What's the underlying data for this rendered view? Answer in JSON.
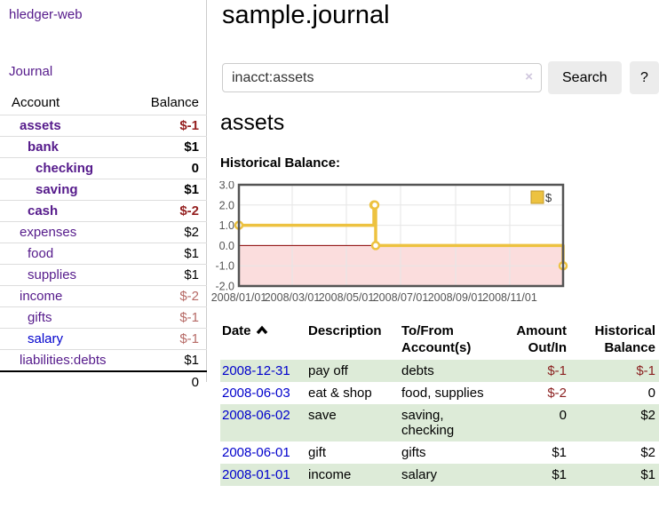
{
  "app": {
    "brand": "hledger-web",
    "nav_journal": "Journal"
  },
  "sidebar": {
    "header": {
      "account": "Account",
      "balance": "Balance"
    },
    "accounts": [
      {
        "name": "assets",
        "balance": "$-1"
      },
      {
        "name": "bank",
        "balance": "$1"
      },
      {
        "name": "checking",
        "balance": "0"
      },
      {
        "name": "saving",
        "balance": "$1"
      },
      {
        "name": "cash",
        "balance": "$-2"
      },
      {
        "name": "expenses",
        "balance": "$2"
      },
      {
        "name": "food",
        "balance": "$1"
      },
      {
        "name": "supplies",
        "balance": "$1"
      },
      {
        "name": "income",
        "balance": "$-2"
      },
      {
        "name": "gifts",
        "balance": "$-1"
      },
      {
        "name": "salary",
        "balance": "$-1"
      },
      {
        "name": "liabilities:debts",
        "balance": "$1"
      }
    ],
    "total": "0"
  },
  "header": {
    "title": "sample.journal"
  },
  "search": {
    "value": "inacct:assets",
    "clear_icon": "×",
    "button": "Search",
    "help_button": "?"
  },
  "account_page": {
    "title": "assets",
    "chart_label": "Historical Balance:"
  },
  "chart_data": {
    "type": "line",
    "step": true,
    "title": "Historical Balance:",
    "series": [
      {
        "name": "$",
        "points": [
          [
            "2008-01-01",
            1
          ],
          [
            "2008-06-01",
            2
          ],
          [
            "2008-06-02",
            2
          ],
          [
            "2008-06-03",
            0
          ],
          [
            "2008-12-31",
            -1
          ]
        ]
      }
    ],
    "x_range": [
      "2008-01-01",
      "2008-12-31"
    ],
    "ylim": [
      -2,
      3
    ],
    "y_ticks": [
      3.0,
      2.0,
      1.0,
      0.0,
      -1.0,
      -2.0
    ],
    "x_tick_dates": [
      "2008-01-01",
      "2008-03-01",
      "2008-05-01",
      "2008-07-01",
      "2008-09-01",
      "2008-11-01"
    ],
    "x_tick_labels": [
      "2008/01/01",
      "2008/03/01",
      "2008/05/01",
      "2008/07/01",
      "2008/09/01",
      "2008/11/01"
    ],
    "legend_position": "top-right",
    "grid": true,
    "colors": {
      "line": "#EDC240",
      "marker_fill": "#ffffff",
      "negative_fill": "#fbdddd",
      "zero_line": "#8b0000",
      "grid": "#e6e6e6",
      "border": "#545454",
      "tick_text": "#545454"
    }
  },
  "register": {
    "headers": {
      "date": "Date",
      "description": "Description",
      "accounts": "To/From Account(s)",
      "amount": "Amount Out/In",
      "balance": "Historical Balance"
    },
    "rows": [
      {
        "date": "2008-12-31",
        "description": "pay off",
        "accounts": [
          "debts"
        ],
        "amount": "$-1",
        "balance": "$-1"
      },
      {
        "date": "2008-06-03",
        "description": "eat & shop",
        "accounts": [
          "food, supplies"
        ],
        "amount": "$-2",
        "balance": "0"
      },
      {
        "date": "2008-06-02",
        "description": "save",
        "accounts": [
          "saving,",
          "checking"
        ],
        "amount": "0",
        "balance": "$2"
      },
      {
        "date": "2008-06-01",
        "description": "gift",
        "accounts": [
          "gifts"
        ],
        "amount": "$1",
        "balance": "$2"
      },
      {
        "date": "2008-01-01",
        "description": "income",
        "accounts": [
          "salary"
        ],
        "amount": "$1",
        "balance": "$1"
      }
    ]
  }
}
